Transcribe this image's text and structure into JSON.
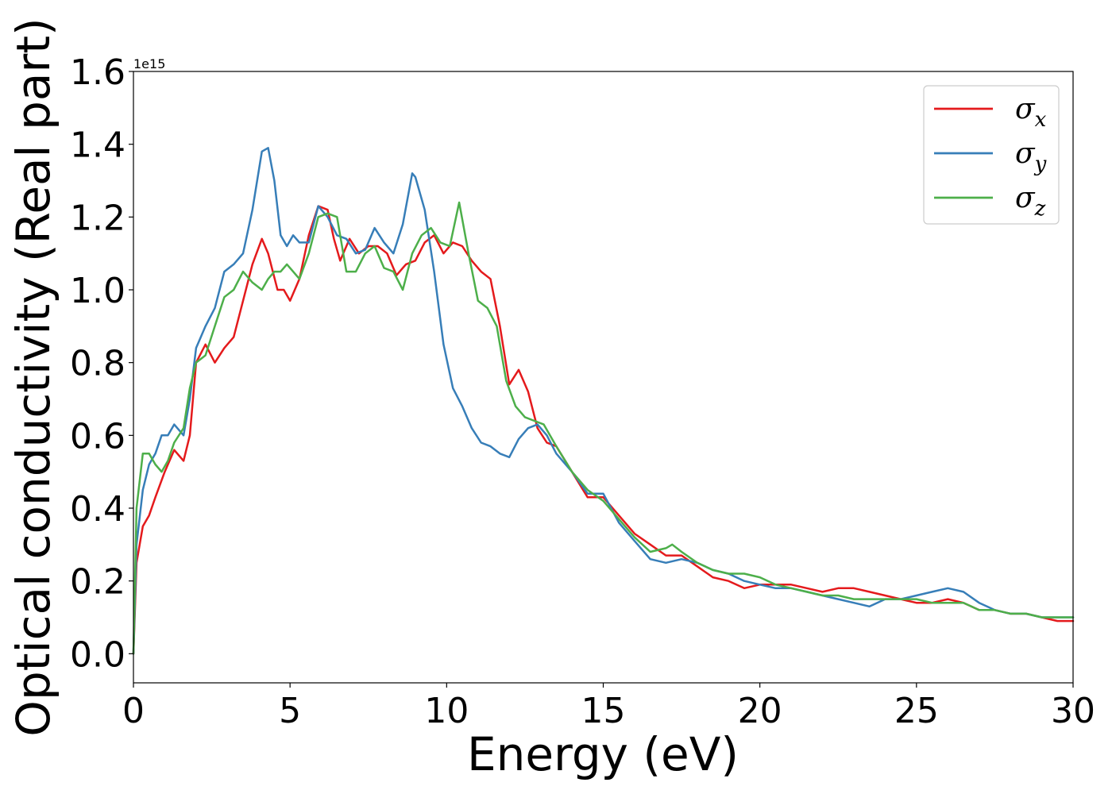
{
  "chart_data": {
    "type": "line",
    "title": "",
    "xlabel": "Energy (eV)",
    "ylabel": "Optical conductivity (Real part)",
    "offset_label": "1e15",
    "xlim": [
      0,
      30
    ],
    "ylim": [
      -0.08,
      1.6
    ],
    "x_ticks": [
      0,
      5,
      10,
      15,
      20,
      25,
      30
    ],
    "y_ticks": [
      0.0,
      0.2,
      0.4,
      0.6,
      0.8,
      1.0,
      1.2,
      1.4,
      1.6
    ],
    "x_tick_labels": [
      "0",
      "5",
      "10",
      "15",
      "20",
      "25",
      "30"
    ],
    "y_tick_labels": [
      "0.0",
      "0.2",
      "0.4",
      "0.6",
      "0.8",
      "1.0",
      "1.2",
      "1.4",
      "1.6"
    ],
    "grid": false,
    "legend_position": "top-right",
    "series": [
      {
        "name": "σx",
        "base": "σ",
        "sub": "x",
        "color": "#e41a1c",
        "x": [
          0,
          0.1,
          0.3,
          0.5,
          0.7,
          1.0,
          1.3,
          1.6,
          1.8,
          2.0,
          2.3,
          2.6,
          2.9,
          3.2,
          3.5,
          3.8,
          4.1,
          4.3,
          4.6,
          4.8,
          5.0,
          5.3,
          5.6,
          5.9,
          6.2,
          6.4,
          6.6,
          6.9,
          7.2,
          7.5,
          7.8,
          8.1,
          8.4,
          8.7,
          9.0,
          9.3,
          9.6,
          9.9,
          10.2,
          10.5,
          10.8,
          11.1,
          11.4,
          11.7,
          12.0,
          12.3,
          12.6,
          12.9,
          13.2,
          13.5,
          14.0,
          14.5,
          15.0,
          15.5,
          16.0,
          16.5,
          17.0,
          17.5,
          18.0,
          18.5,
          19.0,
          19.5,
          20.0,
          20.5,
          21.0,
          21.5,
          22.0,
          22.5,
          23.0,
          23.5,
          24.0,
          24.5,
          25.0,
          25.5,
          26.0,
          26.5,
          27.0,
          27.5,
          28.0,
          28.5,
          29.0,
          29.5,
          30.0
        ],
        "y": [
          0.0,
          0.25,
          0.35,
          0.38,
          0.43,
          0.5,
          0.56,
          0.53,
          0.6,
          0.8,
          0.85,
          0.8,
          0.84,
          0.87,
          0.97,
          1.07,
          1.14,
          1.1,
          1.0,
          1.0,
          0.97,
          1.03,
          1.15,
          1.23,
          1.22,
          1.14,
          1.08,
          1.14,
          1.1,
          1.12,
          1.12,
          1.1,
          1.04,
          1.07,
          1.08,
          1.13,
          1.15,
          1.1,
          1.13,
          1.12,
          1.08,
          1.05,
          1.03,
          0.9,
          0.74,
          0.78,
          0.72,
          0.62,
          0.58,
          0.57,
          0.5,
          0.43,
          0.43,
          0.38,
          0.33,
          0.3,
          0.27,
          0.27,
          0.24,
          0.21,
          0.2,
          0.18,
          0.19,
          0.19,
          0.19,
          0.18,
          0.17,
          0.18,
          0.18,
          0.17,
          0.16,
          0.15,
          0.14,
          0.14,
          0.15,
          0.14,
          0.12,
          0.12,
          0.11,
          0.11,
          0.1,
          0.09,
          0.09
        ]
      },
      {
        "name": "σy",
        "base": "σ",
        "sub": "y",
        "color": "#377eb8",
        "x": [
          0,
          0.1,
          0.3,
          0.5,
          0.7,
          0.9,
          1.1,
          1.3,
          1.6,
          1.8,
          2.0,
          2.3,
          2.6,
          2.9,
          3.2,
          3.5,
          3.8,
          4.1,
          4.3,
          4.5,
          4.7,
          4.9,
          5.1,
          5.3,
          5.6,
          5.9,
          6.2,
          6.5,
          6.8,
          7.1,
          7.4,
          7.7,
          8.0,
          8.3,
          8.6,
          8.9,
          9.0,
          9.3,
          9.6,
          9.9,
          10.2,
          10.5,
          10.8,
          11.1,
          11.4,
          11.7,
          12.0,
          12.3,
          12.6,
          12.9,
          13.2,
          13.5,
          14.0,
          14.5,
          15.0,
          15.5,
          16.0,
          16.5,
          17.0,
          17.5,
          18.0,
          18.5,
          19.0,
          19.5,
          20.0,
          20.5,
          21.0,
          21.5,
          22.0,
          22.5,
          23.0,
          23.5,
          24.0,
          24.5,
          25.0,
          25.5,
          26.0,
          26.5,
          27.0,
          27.5,
          28.0,
          28.5,
          29.0,
          29.5,
          30.0
        ],
        "y": [
          0.0,
          0.3,
          0.45,
          0.52,
          0.55,
          0.6,
          0.6,
          0.63,
          0.6,
          0.7,
          0.84,
          0.9,
          0.95,
          1.05,
          1.07,
          1.1,
          1.22,
          1.38,
          1.39,
          1.3,
          1.15,
          1.12,
          1.15,
          1.13,
          1.13,
          1.23,
          1.2,
          1.15,
          1.14,
          1.1,
          1.11,
          1.17,
          1.13,
          1.1,
          1.18,
          1.32,
          1.31,
          1.22,
          1.05,
          0.85,
          0.73,
          0.68,
          0.62,
          0.58,
          0.57,
          0.55,
          0.54,
          0.59,
          0.62,
          0.63,
          0.6,
          0.55,
          0.5,
          0.44,
          0.44,
          0.36,
          0.31,
          0.26,
          0.25,
          0.26,
          0.25,
          0.23,
          0.22,
          0.2,
          0.19,
          0.18,
          0.18,
          0.17,
          0.16,
          0.15,
          0.14,
          0.13,
          0.15,
          0.15,
          0.16,
          0.17,
          0.18,
          0.17,
          0.14,
          0.12,
          0.11,
          0.11,
          0.1,
          0.1,
          0.1
        ]
      },
      {
        "name": "σz",
        "base": "σ",
        "sub": "z",
        "color": "#4daf4a",
        "x": [
          0,
          0.1,
          0.3,
          0.5,
          0.7,
          0.9,
          1.1,
          1.3,
          1.6,
          1.8,
          2.0,
          2.3,
          2.6,
          2.9,
          3.2,
          3.5,
          3.8,
          4.1,
          4.3,
          4.5,
          4.7,
          4.9,
          5.1,
          5.3,
          5.6,
          5.9,
          6.2,
          6.5,
          6.8,
          7.1,
          7.4,
          7.7,
          8.0,
          8.3,
          8.6,
          8.9,
          9.2,
          9.5,
          9.8,
          10.1,
          10.4,
          10.7,
          11.0,
          11.3,
          11.6,
          11.9,
          12.2,
          12.5,
          12.8,
          13.1,
          13.5,
          14.0,
          14.5,
          15.0,
          15.5,
          16.0,
          16.5,
          17.0,
          17.2,
          17.5,
          18.0,
          18.5,
          19.0,
          19.5,
          20.0,
          20.5,
          21.0,
          21.5,
          22.0,
          22.5,
          23.0,
          23.5,
          24.0,
          24.5,
          25.0,
          25.5,
          26.0,
          26.5,
          27.0,
          27.5,
          28.0,
          28.5,
          29.0,
          29.5,
          30.0
        ],
        "y": [
          0.0,
          0.4,
          0.55,
          0.55,
          0.52,
          0.5,
          0.53,
          0.58,
          0.62,
          0.73,
          0.8,
          0.82,
          0.9,
          0.98,
          1.0,
          1.05,
          1.02,
          1.0,
          1.03,
          1.05,
          1.05,
          1.07,
          1.05,
          1.03,
          1.1,
          1.2,
          1.21,
          1.2,
          1.05,
          1.05,
          1.1,
          1.12,
          1.06,
          1.05,
          1.0,
          1.1,
          1.15,
          1.17,
          1.13,
          1.12,
          1.24,
          1.1,
          0.97,
          0.95,
          0.9,
          0.75,
          0.68,
          0.65,
          0.64,
          0.63,
          0.57,
          0.5,
          0.45,
          0.42,
          0.37,
          0.32,
          0.28,
          0.29,
          0.3,
          0.28,
          0.25,
          0.23,
          0.22,
          0.22,
          0.21,
          0.19,
          0.18,
          0.17,
          0.16,
          0.16,
          0.15,
          0.15,
          0.15,
          0.15,
          0.15,
          0.14,
          0.14,
          0.14,
          0.12,
          0.12,
          0.11,
          0.11,
          0.1,
          0.1,
          0.1
        ]
      }
    ]
  }
}
